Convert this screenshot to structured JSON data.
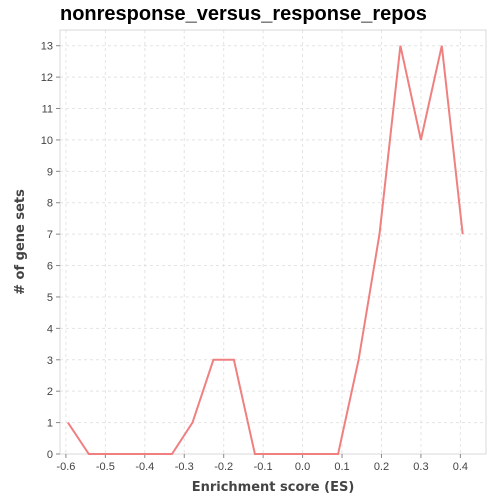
{
  "chart_data": {
    "type": "line",
    "title": "nonresponse_versus_response_repos",
    "xlabel": "Enrichment score (ES)",
    "ylabel": "# of gene sets",
    "xlim": [
      -0.615,
      0.465
    ],
    "ylim": [
      0,
      13.5
    ],
    "x_ticks": [
      -0.6,
      -0.5,
      -0.4,
      -0.3,
      -0.2,
      -0.1,
      0.0,
      0.1,
      0.2,
      0.3,
      0.4
    ],
    "x_tick_labels": [
      "-0.6",
      "-0.5",
      "-0.4",
      "-0.3",
      "-0.2",
      "-0.1",
      "0.0",
      "0.1",
      "0.2",
      "0.3",
      "0.4"
    ],
    "y_ticks": [
      0,
      1,
      2,
      3,
      4,
      5,
      6,
      7,
      8,
      9,
      10,
      11,
      12,
      13
    ],
    "y_tick_labels": [
      "0",
      "1",
      "2",
      "3",
      "4",
      "5",
      "6",
      "7",
      "8",
      "9",
      "10",
      "11",
      "12",
      "13"
    ],
    "grid": true,
    "series": [
      {
        "color": "#f08080",
        "x": [
          -0.595,
          -0.542,
          -0.49,
          -0.437,
          -0.384,
          -0.331,
          -0.279,
          -0.226,
          -0.174,
          -0.121,
          -0.068,
          -0.016,
          0.037,
          0.09,
          0.142,
          0.195,
          0.248,
          0.3,
          0.353,
          0.406
        ],
        "y": [
          1,
          0,
          0,
          0,
          0,
          0,
          1,
          3,
          3,
          0,
          0,
          0,
          0,
          0,
          3,
          7,
          13,
          10,
          13,
          7
        ]
      }
    ]
  }
}
